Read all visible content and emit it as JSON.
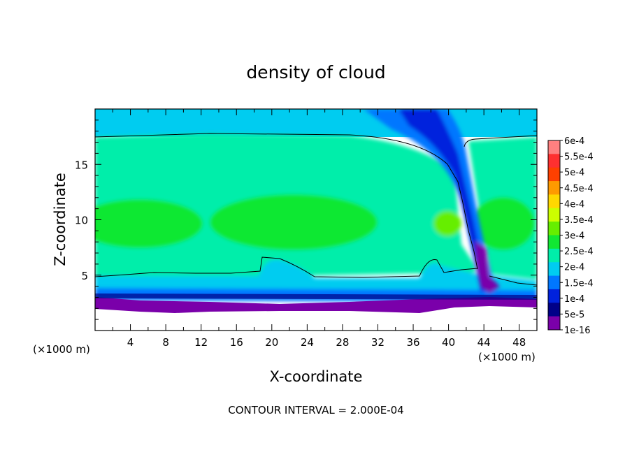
{
  "chart_data": {
    "type": "heatmap",
    "title": "density of cloud",
    "xlabel": "X-coordinate",
    "ylabel": "Z-coordinate",
    "x_unit_label": "(×1000 m)",
    "y_unit_label": "(×1000 m)",
    "xlim": [
      0,
      50
    ],
    "ylim": [
      0,
      20
    ],
    "x_ticks": [
      4,
      8,
      12,
      16,
      20,
      24,
      28,
      32,
      36,
      40,
      44,
      48
    ],
    "y_ticks": [
      5,
      10,
      15
    ],
    "contour_interval_text": "CONTOUR INTERVAL = 2.000E-04",
    "colorbar": {
      "levels": [
        "6e-4",
        "5.5e-4",
        "5e-4",
        "4.5e-4",
        "4e-4",
        "3.5e-4",
        "3e-4",
        "2.5e-4",
        "2e-4",
        "1.5e-4",
        "1e-4",
        "5e-5",
        "1e-16"
      ],
      "colors": [
        "#ff8080",
        "#ff3030",
        "#ff4000",
        "#ff9a00",
        "#ffd800",
        "#ccff00",
        "#66ee00",
        "#11e833",
        "#00eeaa",
        "#00ccf0",
        "#0077ff",
        "#0022dd",
        "#000088",
        "#7a00aa"
      ]
    },
    "contour_level": 0.0002,
    "features": {
      "cloud_top_z": 17.6,
      "cloud_base_z": 2.0,
      "plume_x": 43.5
    }
  }
}
